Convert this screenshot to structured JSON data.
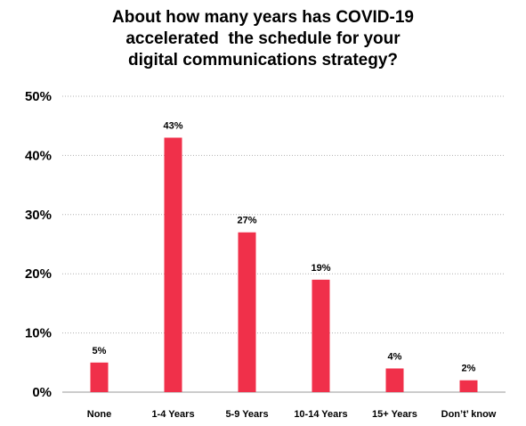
{
  "chart_data": {
    "type": "bar",
    "title_lines": [
      "About how many years has COVID-19",
      "accelerated  the schedule for your",
      "digital communications strategy?"
    ],
    "categories": [
      "None",
      "1-4 Years",
      "5-9 Years",
      "10-14 Years",
      "15+ Years",
      "Don’t’ know"
    ],
    "values": [
      5,
      43,
      27,
      19,
      4,
      2
    ],
    "data_labels": [
      "5%",
      "43%",
      "27%",
      "19%",
      "4%",
      "2%"
    ],
    "ylim": [
      0,
      50
    ],
    "yticks": [
      0,
      10,
      20,
      30,
      40,
      50
    ],
    "ytick_labels": [
      "0%",
      "10%",
      "20%",
      "30%",
      "40%",
      "50%"
    ],
    "grid": true,
    "bar_color": "#f0304a",
    "grid_color": "#b0b0b0",
    "axis_color": "#999999"
  }
}
